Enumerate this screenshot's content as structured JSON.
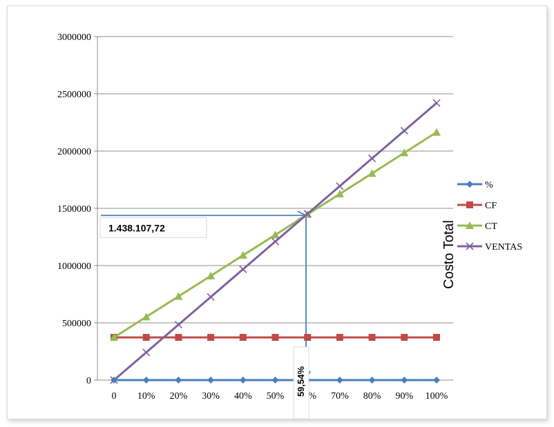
{
  "chart_data": {
    "type": "line",
    "categories": [
      "0",
      "10%",
      "20%",
      "30%",
      "40%",
      "50%",
      "60%",
      "70%",
      "80%",
      "90%",
      "100%"
    ],
    "y_tick_labels": [
      "0",
      "500000",
      "1000000",
      "1500000",
      "2000000",
      "2500000",
      "3000000"
    ],
    "ylim": [
      0,
      3000000
    ],
    "ylabel": "Costo Total",
    "grid": true,
    "legend_position": "right",
    "series": [
      {
        "name": "%",
        "color": "#4a7ebb",
        "marker": "diamond",
        "values": [
          0,
          0,
          0,
          0,
          0,
          0,
          0,
          0,
          0,
          0,
          0
        ]
      },
      {
        "name": "CF",
        "color": "#be4b48",
        "marker": "square",
        "values": [
          373000,
          373000,
          373000,
          373000,
          373000,
          373000,
          373000,
          373000,
          373000,
          373000,
          373000
        ]
      },
      {
        "name": "CT",
        "color": "#98b954",
        "marker": "triangle",
        "values": [
          373000,
          552000,
          731000,
          910000,
          1090000,
          1268000,
          1447000,
          1626000,
          1805000,
          1985000,
          2164000
        ]
      },
      {
        "name": "VENTAS",
        "color": "#7d60a0",
        "marker": "x",
        "values": [
          0,
          242000,
          484000,
          726000,
          968000,
          1210000,
          1452000,
          1694000,
          1936000,
          2178000,
          2420000
        ]
      }
    ],
    "annotations": {
      "break_even_value_label": "1.438.107,72",
      "break_even_value": 1438107.72,
      "break_even_percent_label": "59,54%",
      "break_even_percent": 59.54,
      "arrow_color": "#4a7ebb"
    }
  }
}
